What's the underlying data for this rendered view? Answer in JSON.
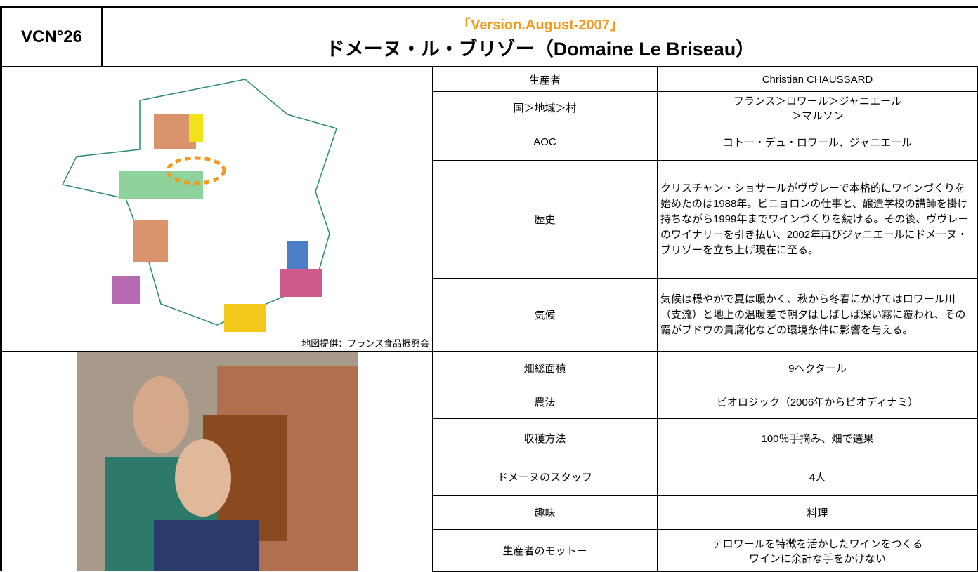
{
  "header": {
    "code": "VCN°26",
    "version": "「Version.August-2007」",
    "title": "ドメーヌ・ル・ブリゾー（Domaine Le Briseau）"
  },
  "map_credit": "地図提供：フランス食品振興会",
  "table": {
    "rows": [
      [
        "生産者",
        "Christian CHAUSSARD"
      ],
      [
        "国＞地域＞村",
        "フランス＞ロワール＞ジャニエール\n＞マルソン"
      ],
      [
        "AOC",
        "コトー・デュ・ロワール、ジャニエール"
      ],
      [
        "歴史",
        "クリスチャン・ショサールがヴヴレーで本格的にワインづくりを始めたのは1988年。ビニョロンの仕事と、醸造学校の講師を掛け持ちながら1999年までワインづくりを続ける。その後、ヴヴレーのワイナリーを引き払い、2002年再びジャニエールにドメーヌ・ブリゾーを立ち上げ現在に至る。"
      ],
      [
        "気候",
        "気候は穏やかで夏は暖かく、秋から冬春にかけてはロワール川（支流）と地上の温暖差で朝夕はしばしば深い霧に覆われ、その霧がブドウの貴腐化などの環境条件に影響を与える。"
      ],
      [
        "畑総面積",
        "9ヘクタール"
      ],
      [
        "農法",
        "ビオロジック（2006年からビオディナミ）"
      ],
      [
        "収穫方法",
        "100％手摘み、畑で選果"
      ],
      [
        "ドメーヌのスタッフ",
        "4人"
      ],
      [
        "趣味",
        "料理"
      ],
      [
        "生産者のモットー",
        "テロワールを特徴を活かしたワインをつくる\nワインに余計な手をかけない"
      ]
    ]
  }
}
